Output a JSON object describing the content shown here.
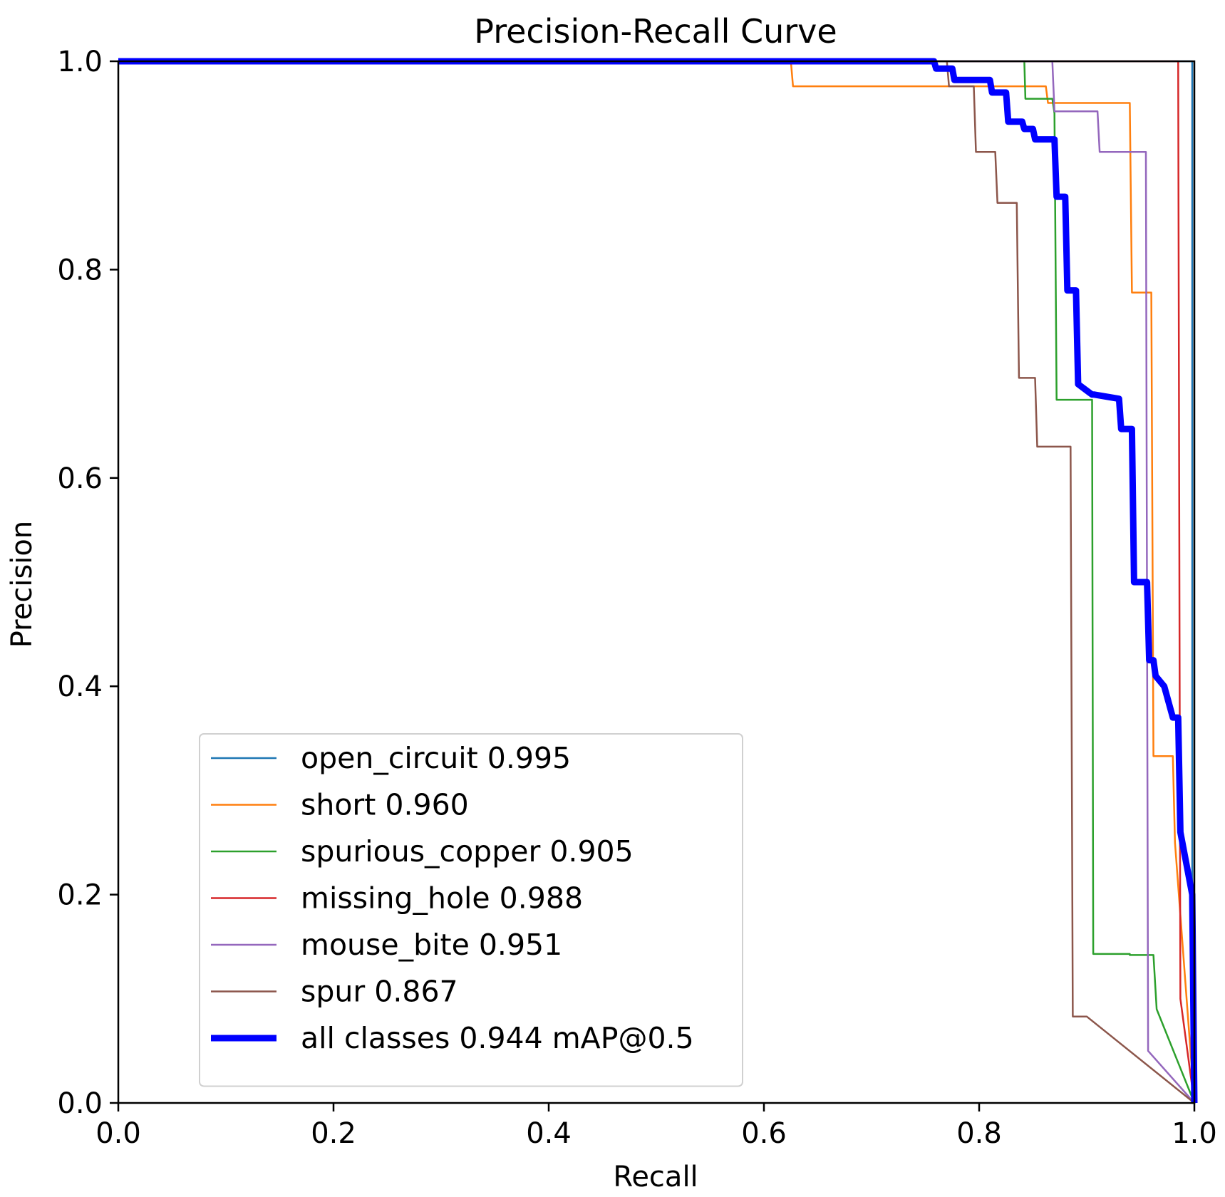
{
  "chart_data": {
    "type": "line",
    "title": "Precision-Recall Curve",
    "xlabel": "Recall",
    "ylabel": "Precision",
    "xlim": [
      0.0,
      1.0
    ],
    "ylim": [
      0.0,
      1.0
    ],
    "grid": false,
    "legend_position": "lower-left",
    "xticks": [
      "0.0",
      "0.2",
      "0.4",
      "0.6",
      "0.8",
      "1.0"
    ],
    "yticks": [
      "0.0",
      "0.2",
      "0.4",
      "0.6",
      "0.8",
      "1.0"
    ],
    "series": [
      {
        "name": "open_circuit 0.995",
        "color": "#1f77b4",
        "width": "thin",
        "x": [
          0.0,
          0.998,
          0.998,
          1.0
        ],
        "y": [
          1.0,
          1.0,
          0.0,
          0.0
        ]
      },
      {
        "name": "short 0.960",
        "color": "#ff7f0e",
        "width": "thin",
        "x": [
          0.0,
          0.625,
          0.627,
          0.862,
          0.864,
          0.94,
          0.942,
          0.96,
          0.962,
          0.98,
          0.982,
          1.0
        ],
        "y": [
          1.0,
          1.0,
          0.976,
          0.976,
          0.96,
          0.96,
          0.778,
          0.778,
          0.333,
          0.333,
          0.25,
          0.0
        ]
      },
      {
        "name": "spurious_copper 0.905",
        "color": "#2ca02c",
        "width": "thin",
        "x": [
          0.0,
          0.842,
          0.843,
          0.868,
          0.87,
          0.87,
          0.872,
          0.905,
          0.906,
          0.94,
          0.94,
          0.962,
          0.965,
          1.0
        ],
        "y": [
          1.0,
          1.0,
          0.964,
          0.964,
          0.95,
          0.95,
          0.675,
          0.675,
          0.143,
          0.143,
          0.142,
          0.142,
          0.09,
          0.0
        ]
      },
      {
        "name": "missing_hole 0.988",
        "color": "#d62728",
        "width": "thin",
        "x": [
          0.0,
          0.985,
          0.987,
          1.0
        ],
        "y": [
          1.0,
          1.0,
          0.1,
          0.0
        ]
      },
      {
        "name": "mouse_bite 0.951",
        "color": "#9467bd",
        "width": "thin",
        "x": [
          0.0,
          0.868,
          0.87,
          0.91,
          0.912,
          0.94,
          0.955,
          0.957,
          1.0
        ],
        "y": [
          1.0,
          1.0,
          0.952,
          0.952,
          0.913,
          0.913,
          0.913,
          0.05,
          0.0
        ]
      },
      {
        "name": "spur 0.867",
        "color": "#8c564b",
        "width": "thin",
        "x": [
          0.0,
          0.77,
          0.772,
          0.795,
          0.797,
          0.815,
          0.817,
          0.835,
          0.837,
          0.852,
          0.854,
          0.885,
          0.887,
          0.9,
          1.0
        ],
        "y": [
          1.0,
          1.0,
          0.976,
          0.976,
          0.913,
          0.913,
          0.864,
          0.864,
          0.696,
          0.696,
          0.63,
          0.63,
          0.083,
          0.083,
          0.0
        ]
      },
      {
        "name": "all classes 0.944 mAP@0.5",
        "color": "#0000ff",
        "width": "thick",
        "x": [
          0.0,
          0.758,
          0.76,
          0.775,
          0.777,
          0.81,
          0.812,
          0.825,
          0.827,
          0.84,
          0.842,
          0.85,
          0.852,
          0.87,
          0.872,
          0.88,
          0.882,
          0.89,
          0.892,
          0.905,
          0.907,
          0.93,
          0.932,
          0.942,
          0.944,
          0.956,
          0.958,
          0.962,
          0.964,
          0.972,
          0.98,
          0.985,
          0.987,
          0.998,
          1.0
        ],
        "y": [
          1.0,
          1.0,
          0.993,
          0.993,
          0.982,
          0.982,
          0.97,
          0.97,
          0.942,
          0.942,
          0.935,
          0.935,
          0.925,
          0.925,
          0.87,
          0.87,
          0.78,
          0.78,
          0.69,
          0.68,
          0.68,
          0.676,
          0.647,
          0.647,
          0.5,
          0.5,
          0.425,
          0.425,
          0.41,
          0.4,
          0.37,
          0.37,
          0.26,
          0.2,
          0.0
        ]
      }
    ]
  }
}
